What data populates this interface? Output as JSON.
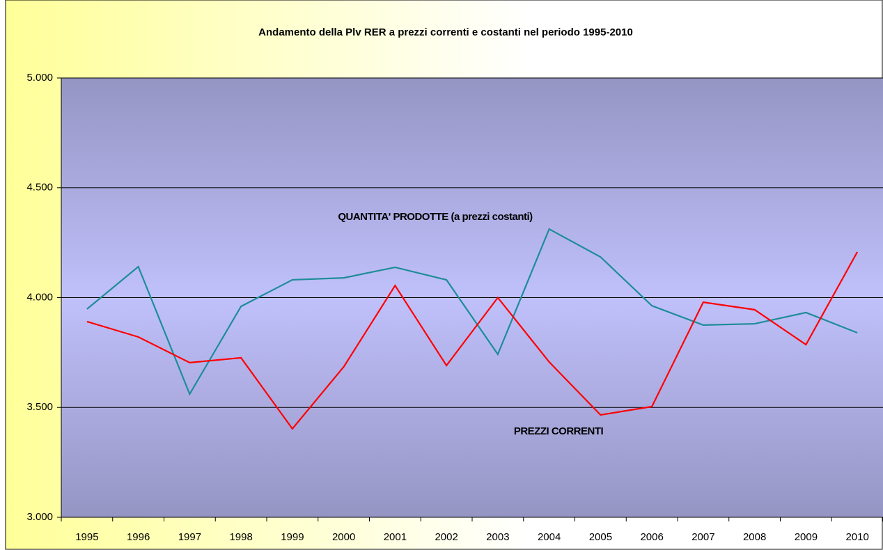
{
  "chart_data": {
    "type": "line",
    "title": "Andamento della Plv RER a prezzi correnti e costanti nel periodo 1995-2010",
    "categories": [
      "1995",
      "1996",
      "1997",
      "1998",
      "1999",
      "2000",
      "2001",
      "2002",
      "2003",
      "2004",
      "2005",
      "2006",
      "2007",
      "2008",
      "2009",
      "2010"
    ],
    "series": [
      {
        "name": "QUANTITA' PRODOTTE (a prezzi costanti)",
        "color": "#1e8c98",
        "values": [
          3948,
          4141,
          3561,
          3960,
          4081,
          4090,
          4138,
          4081,
          3742,
          4312,
          4185,
          3963,
          3875,
          3881,
          3932,
          3840
        ]
      },
      {
        "name": "PREZZI CORRENTI",
        "color": "#ff0000",
        "values": [
          3891,
          3821,
          3704,
          3726,
          3403,
          3685,
          4055,
          3691,
          4000,
          3707,
          3466,
          3504,
          3979,
          3945,
          3786,
          4208
        ]
      }
    ],
    "ylim": [
      3000,
      5000
    ],
    "yticks": [
      {
        "value": 3000,
        "label": "3.000"
      },
      {
        "value": 3500,
        "label": "3.500"
      },
      {
        "value": 4000,
        "label": "4.000"
      },
      {
        "value": 4500,
        "label": "4.500"
      },
      {
        "value": 5000,
        "label": "5.000"
      }
    ],
    "grid": true
  }
}
